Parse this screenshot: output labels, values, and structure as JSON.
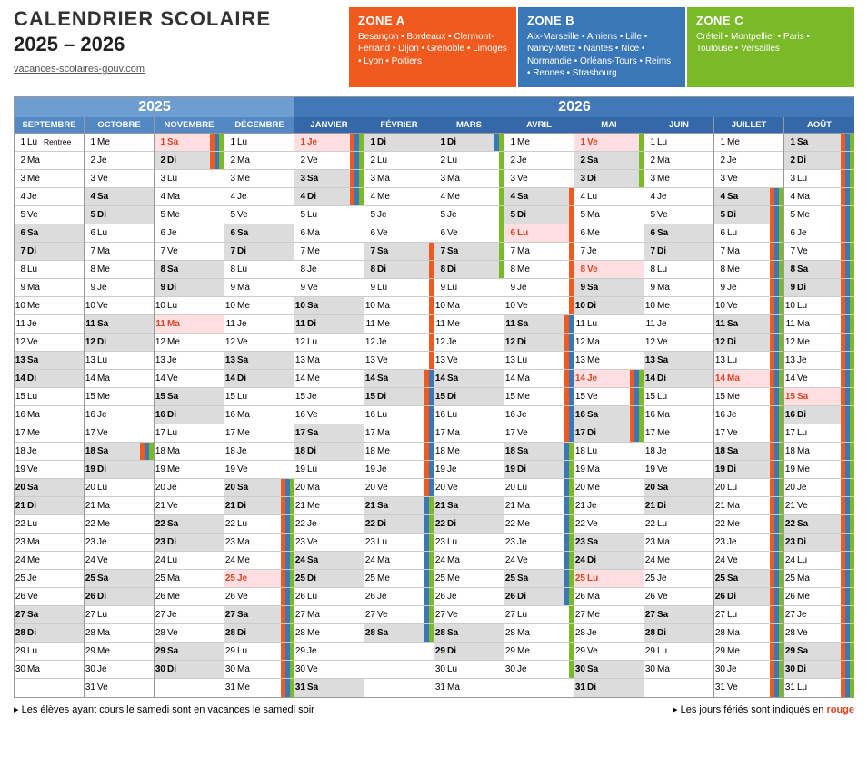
{
  "title": "CALENDRIER SCOLAIRE",
  "subtitle": "2025 – 2026",
  "url": "vacances-scolaires-gouv.com",
  "colors": {
    "zoneA": "#f05a1e",
    "zoneB": "#3a77b8",
    "zoneC": "#7ab928",
    "year2025": "#6e9dd0",
    "year2026": "#4178b8",
    "month2025": "#5488c4",
    "month2026": "#3468a8",
    "weekend": "#dcdcdc",
    "holiday": "#ffdfe2",
    "holidayText": "#d42c2c"
  },
  "zones": [
    {
      "key": "A",
      "title": "ZONE A",
      "text": "Besançon • Bordeaux • Clermont-Ferrand • Dijon • Grenoble • Limoges • Lyon • Poitiers",
      "color": "#f05a1e"
    },
    {
      "key": "B",
      "title": "ZONE B",
      "text": "Aix-Marseille • Amiens • Lille • Nancy-Metz • Nantes • Nice • Normandie • Orléans-Tours • Reims • Rennes • Strasbourg",
      "color": "#3a77b8"
    },
    {
      "key": "C",
      "title": "ZONE C",
      "text": "Créteil • Montpellier • Paris • Toulouse • Versailles",
      "color": "#7ab928"
    }
  ],
  "yearBlocks": [
    {
      "year": "2025",
      "bg": "#6e9dd0",
      "mbg": "#5488c4",
      "months": [
        "SEPTEMBRE",
        "OCTOBRE",
        "NOVEMBRE",
        "DÉCEMBRE"
      ]
    },
    {
      "year": "2026",
      "bg": "#4178b8",
      "mbg": "#3468a8",
      "months": [
        "JANVIER",
        "FÉVRIER",
        "MARS",
        "AVRIL",
        "MAI",
        "JUIN",
        "JUILLET",
        "AOÛT"
      ]
    }
  ],
  "dayAbbr": [
    "Lu",
    "Ma",
    "Me",
    "Je",
    "Ve",
    "Sa",
    "Di"
  ],
  "months": {
    "SEPTEMBRE": {
      "days": 30,
      "start": 0,
      "cells": {
        "1": {
          "label": "Rentrée"
        }
      }
    },
    "OCTOBRE": {
      "days": 31,
      "start": 2,
      "cells": {
        "18": {
          "z": [
            "A",
            "B",
            "C"
          ]
        }
      }
    },
    "NOVEMBRE": {
      "days": 30,
      "start": 5,
      "holidays": [
        1,
        11
      ],
      "cells": {
        "1": {
          "z": [
            "A",
            "B",
            "C"
          ]
        },
        "2": {
          "z": [
            "A",
            "B",
            "C"
          ]
        }
      }
    },
    "DÉCEMBRE": {
      "days": 31,
      "start": 0,
      "holidays": [
        25
      ],
      "cells": {
        "20": {
          "z": [
            "A",
            "B",
            "C"
          ]
        },
        "21": {
          "z": [
            "A",
            "B",
            "C"
          ]
        },
        "22": {
          "z": [
            "A",
            "B",
            "C"
          ]
        },
        "23": {
          "z": [
            "A",
            "B",
            "C"
          ]
        },
        "24": {
          "z": [
            "A",
            "B",
            "C"
          ]
        },
        "25": {
          "z": [
            "A",
            "B",
            "C"
          ]
        },
        "26": {
          "z": [
            "A",
            "B",
            "C"
          ]
        },
        "27": {
          "z": [
            "A",
            "B",
            "C"
          ]
        },
        "28": {
          "z": [
            "A",
            "B",
            "C"
          ]
        },
        "29": {
          "z": [
            "A",
            "B",
            "C"
          ]
        },
        "30": {
          "z": [
            "A",
            "B",
            "C"
          ]
        },
        "31": {
          "z": [
            "A",
            "B",
            "C"
          ]
        }
      }
    },
    "JANVIER": {
      "days": 31,
      "start": 3,
      "holidays": [
        1
      ],
      "cells": {
        "1": {
          "z": [
            "A",
            "B",
            "C"
          ]
        },
        "2": {
          "z": [
            "A",
            "B",
            "C"
          ]
        },
        "3": {
          "z": [
            "A",
            "B",
            "C"
          ]
        },
        "4": {
          "z": [
            "A",
            "B",
            "C"
          ]
        }
      }
    },
    "FÉVRIER": {
      "days": 28,
      "start": 6,
      "cells": {
        "7": {
          "z": [
            "A"
          ]
        },
        "8": {
          "z": [
            "A"
          ]
        },
        "9": {
          "z": [
            "A"
          ]
        },
        "10": {
          "z": [
            "A"
          ]
        },
        "11": {
          "z": [
            "A"
          ]
        },
        "12": {
          "z": [
            "A"
          ]
        },
        "13": {
          "z": [
            "A"
          ]
        },
        "14": {
          "z": [
            "A",
            "B"
          ]
        },
        "15": {
          "z": [
            "A",
            "B"
          ]
        },
        "16": {
          "z": [
            "A",
            "B"
          ]
        },
        "17": {
          "z": [
            "A",
            "B"
          ]
        },
        "18": {
          "z": [
            "A",
            "B"
          ]
        },
        "19": {
          "z": [
            "A",
            "B"
          ]
        },
        "20": {
          "z": [
            "A",
            "B"
          ]
        },
        "21": {
          "z": [
            "B",
            "C"
          ]
        },
        "22": {
          "z": [
            "B",
            "C"
          ]
        },
        "23": {
          "z": [
            "B",
            "C"
          ]
        },
        "24": {
          "z": [
            "B",
            "C"
          ]
        },
        "25": {
          "z": [
            "B",
            "C"
          ]
        },
        "26": {
          "z": [
            "B",
            "C"
          ]
        },
        "27": {
          "z": [
            "B",
            "C"
          ]
        },
        "28": {
          "z": [
            "B",
            "C"
          ]
        }
      }
    },
    "MARS": {
      "days": 31,
      "start": 6,
      "cells": {
        "1": {
          "z": [
            "B",
            "C"
          ]
        },
        "2": {
          "z": [
            "C"
          ]
        },
        "3": {
          "z": [
            "C"
          ]
        },
        "4": {
          "z": [
            "C"
          ]
        },
        "5": {
          "z": [
            "C"
          ]
        },
        "6": {
          "z": [
            "C"
          ]
        },
        "7": {
          "z": [
            "C"
          ]
        },
        "8": {
          "z": [
            "C"
          ]
        }
      }
    },
    "AVRIL": {
      "days": 30,
      "start": 2,
      "holidays": [
        6
      ],
      "cells": {
        "4": {
          "z": [
            "A"
          ]
        },
        "5": {
          "z": [
            "A"
          ]
        },
        "6": {
          "z": [
            "A"
          ]
        },
        "7": {
          "z": [
            "A"
          ]
        },
        "8": {
          "z": [
            "A"
          ]
        },
        "9": {
          "z": [
            "A"
          ]
        },
        "10": {
          "z": [
            "A"
          ]
        },
        "11": {
          "z": [
            "A",
            "B"
          ]
        },
        "12": {
          "z": [
            "A",
            "B"
          ]
        },
        "13": {
          "z": [
            "A",
            "B"
          ]
        },
        "14": {
          "z": [
            "A",
            "B"
          ]
        },
        "15": {
          "z": [
            "A",
            "B"
          ]
        },
        "16": {
          "z": [
            "A",
            "B"
          ]
        },
        "17": {
          "z": [
            "A",
            "B"
          ]
        },
        "18": {
          "z": [
            "B",
            "C"
          ]
        },
        "19": {
          "z": [
            "B",
            "C"
          ]
        },
        "20": {
          "z": [
            "B",
            "C"
          ]
        },
        "21": {
          "z": [
            "B",
            "C"
          ]
        },
        "22": {
          "z": [
            "B",
            "C"
          ]
        },
        "23": {
          "z": [
            "B",
            "C"
          ]
        },
        "24": {
          "z": [
            "B",
            "C"
          ]
        },
        "25": {
          "z": [
            "B",
            "C"
          ]
        },
        "26": {
          "z": [
            "B",
            "C"
          ]
        },
        "27": {
          "z": [
            "C"
          ]
        },
        "28": {
          "z": [
            "C"
          ]
        },
        "29": {
          "z": [
            "C"
          ]
        },
        "30": {
          "z": [
            "C"
          ]
        }
      }
    },
    "MAI": {
      "days": 31,
      "start": 4,
      "holidays": [
        1,
        8,
        14,
        25
      ],
      "cells": {
        "1": {
          "z": [
            "C"
          ]
        },
        "2": {
          "z": [
            "C"
          ]
        },
        "3": {
          "z": [
            "C"
          ]
        },
        "14": {
          "z": [
            "A",
            "B",
            "C"
          ]
        },
        "15": {
          "z": [
            "A",
            "B",
            "C"
          ]
        },
        "16": {
          "z": [
            "A",
            "B",
            "C"
          ]
        },
        "17": {
          "z": [
            "A",
            "B",
            "C"
          ]
        }
      }
    },
    "JUIN": {
      "days": 30,
      "start": 0
    },
    "JUILLET": {
      "days": 31,
      "start": 2,
      "holidays": [
        14
      ],
      "cells": {
        "4": {
          "z": [
            "A",
            "B",
            "C"
          ]
        },
        "5": {
          "z": [
            "A",
            "B",
            "C"
          ]
        },
        "6": {
          "z": [
            "A",
            "B",
            "C"
          ]
        },
        "7": {
          "z": [
            "A",
            "B",
            "C"
          ]
        },
        "8": {
          "z": [
            "A",
            "B",
            "C"
          ]
        },
        "9": {
          "z": [
            "A",
            "B",
            "C"
          ]
        },
        "10": {
          "z": [
            "A",
            "B",
            "C"
          ]
        },
        "11": {
          "z": [
            "A",
            "B",
            "C"
          ]
        },
        "12": {
          "z": [
            "A",
            "B",
            "C"
          ]
        },
        "13": {
          "z": [
            "A",
            "B",
            "C"
          ]
        },
        "14": {
          "z": [
            "A",
            "B",
            "C"
          ]
        },
        "15": {
          "z": [
            "A",
            "B",
            "C"
          ]
        },
        "16": {
          "z": [
            "A",
            "B",
            "C"
          ]
        },
        "17": {
          "z": [
            "A",
            "B",
            "C"
          ]
        },
        "18": {
          "z": [
            "A",
            "B",
            "C"
          ]
        },
        "19": {
          "z": [
            "A",
            "B",
            "C"
          ]
        },
        "20": {
          "z": [
            "A",
            "B",
            "C"
          ]
        },
        "21": {
          "z": [
            "A",
            "B",
            "C"
          ]
        },
        "22": {
          "z": [
            "A",
            "B",
            "C"
          ]
        },
        "23": {
          "z": [
            "A",
            "B",
            "C"
          ]
        },
        "24": {
          "z": [
            "A",
            "B",
            "C"
          ]
        },
        "25": {
          "z": [
            "A",
            "B",
            "C"
          ]
        },
        "26": {
          "z": [
            "A",
            "B",
            "C"
          ]
        },
        "27": {
          "z": [
            "A",
            "B",
            "C"
          ]
        },
        "28": {
          "z": [
            "A",
            "B",
            "C"
          ]
        },
        "29": {
          "z": [
            "A",
            "B",
            "C"
          ]
        },
        "30": {
          "z": [
            "A",
            "B",
            "C"
          ]
        },
        "31": {
          "z": [
            "A",
            "B",
            "C"
          ]
        }
      }
    },
    "AOÛT": {
      "days": 31,
      "start": 5,
      "holidays": [
        15
      ],
      "cells": {
        "1": {
          "z": [
            "A",
            "B",
            "C"
          ]
        },
        "2": {
          "z": [
            "A",
            "B",
            "C"
          ]
        },
        "3": {
          "z": [
            "A",
            "B",
            "C"
          ]
        },
        "4": {
          "z": [
            "A",
            "B",
            "C"
          ]
        },
        "5": {
          "z": [
            "A",
            "B",
            "C"
          ]
        },
        "6": {
          "z": [
            "A",
            "B",
            "C"
          ]
        },
        "7": {
          "z": [
            "A",
            "B",
            "C"
          ]
        },
        "8": {
          "z": [
            "A",
            "B",
            "C"
          ]
        },
        "9": {
          "z": [
            "A",
            "B",
            "C"
          ]
        },
        "10": {
          "z": [
            "A",
            "B",
            "C"
          ]
        },
        "11": {
          "z": [
            "A",
            "B",
            "C"
          ]
        },
        "12": {
          "z": [
            "A",
            "B",
            "C"
          ]
        },
        "13": {
          "z": [
            "A",
            "B",
            "C"
          ]
        },
        "14": {
          "z": [
            "A",
            "B",
            "C"
          ]
        },
        "15": {
          "z": [
            "A",
            "B",
            "C"
          ]
        },
        "16": {
          "z": [
            "A",
            "B",
            "C"
          ]
        },
        "17": {
          "z": [
            "A",
            "B",
            "C"
          ]
        },
        "18": {
          "z": [
            "A",
            "B",
            "C"
          ]
        },
        "19": {
          "z": [
            "A",
            "B",
            "C"
          ]
        },
        "20": {
          "z": [
            "A",
            "B",
            "C"
          ]
        },
        "21": {
          "z": [
            "A",
            "B",
            "C"
          ]
        },
        "22": {
          "z": [
            "A",
            "B",
            "C"
          ]
        },
        "23": {
          "z": [
            "A",
            "B",
            "C"
          ]
        },
        "24": {
          "z": [
            "A",
            "B",
            "C"
          ]
        },
        "25": {
          "z": [
            "A",
            "B",
            "C"
          ]
        },
        "26": {
          "z": [
            "A",
            "B",
            "C"
          ]
        },
        "27": {
          "z": [
            "A",
            "B",
            "C"
          ]
        },
        "28": {
          "z": [
            "A",
            "B",
            "C"
          ]
        },
        "29": {
          "z": [
            "A",
            "B",
            "C"
          ]
        },
        "30": {
          "z": [
            "A",
            "B",
            "C"
          ]
        },
        "31": {
          "z": [
            "A",
            "B",
            "C"
          ]
        }
      }
    }
  },
  "footer": {
    "left": "▸ Les élèves ayant cours le samedi sont en vacances le samedi soir",
    "rightPrefix": "▸ Les jours fériés sont indiqués en ",
    "rightHighlight": "rouge"
  }
}
